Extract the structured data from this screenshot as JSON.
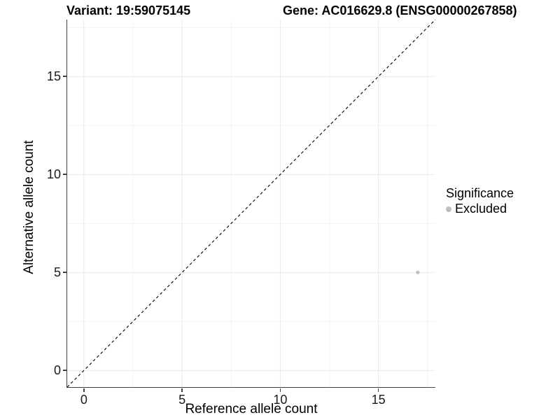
{
  "chart_data": {
    "type": "scatter",
    "title_variant": "Variant: 19:59075145",
    "title_gene": "Gene: AC016629.8 (ENSG00000267858)",
    "xlabel": "Reference allele count",
    "ylabel": "Alternative allele count",
    "xlim": [
      -0.85,
      17.9
    ],
    "ylim": [
      -0.85,
      17.9
    ],
    "x_ticks": [
      0,
      5,
      10,
      15
    ],
    "y_ticks": [
      0,
      5,
      10,
      15
    ],
    "x_minor_ticks": [
      2.5,
      7.5,
      12.5,
      17.5
    ],
    "y_minor_ticks": [
      2.5,
      7.5,
      12.5,
      17.5
    ],
    "grid": "major+minor",
    "points": [
      {
        "x": 17,
        "y": 5,
        "significance": "Excluded"
      }
    ],
    "identity_line": {
      "slope": 1,
      "intercept": 0,
      "style": "dashed"
    },
    "legend": {
      "title": "Significance",
      "position": "right",
      "entries": [
        {
          "label": "Excluded",
          "color": "#bdbdbd"
        }
      ]
    }
  },
  "colors": {
    "background": "#ffffff",
    "axis_line": "#404040",
    "tick_label": "#1a1a1a",
    "title_text": "#000000",
    "grid_major": "#e9e9e9",
    "grid_minor": "#f3f3f3",
    "point": "#bdbdbd",
    "dashed_line": "#000000"
  }
}
